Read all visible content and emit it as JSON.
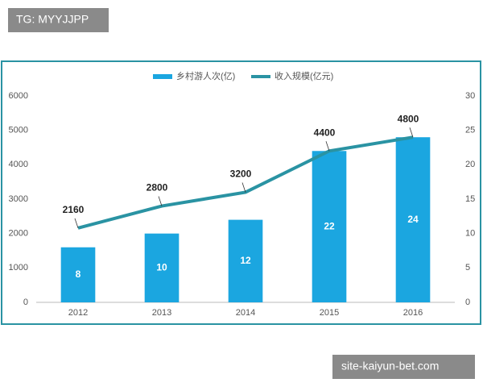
{
  "watermarks": [
    "TG: MYYJJPP",
    "site-kaiyun-bet.com"
  ],
  "chart_data": {
    "type": "bar",
    "categories": [
      "2012",
      "2013",
      "2014",
      "2015",
      "2016"
    ],
    "series": [
      {
        "name": "乡村游人次(亿)",
        "type": "bar",
        "axis": "y2",
        "color": "#1ba6e0",
        "values": [
          8,
          10,
          12,
          22,
          24
        ]
      },
      {
        "name": "收入规模(亿元)",
        "type": "line",
        "color": "#2a93a3",
        "values": [
          2160,
          2800,
          3200,
          4400,
          4800
        ]
      }
    ],
    "ylim": [
      0,
      6000
    ],
    "yticks": [
      0,
      1000,
      2000,
      3000,
      4000,
      5000,
      6000
    ],
    "y2lim": [
      0,
      30
    ],
    "y2ticks": [
      0,
      5,
      10,
      15,
      20,
      25,
      30
    ],
    "grid": false,
    "legend": "top"
  }
}
